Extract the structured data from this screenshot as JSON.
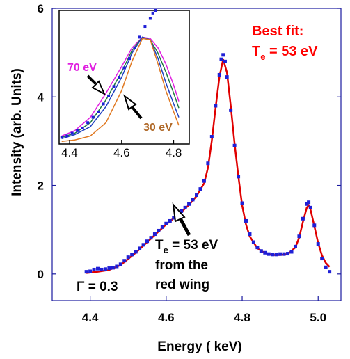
{
  "chart_data": [
    {
      "type": "scatter",
      "title": "",
      "xlabel": "Energy ( keV)",
      "ylabel": "Intensity (arb. Units)",
      "xlim": [
        4.3,
        5.06
      ],
      "ylim": [
        -0.6,
        6.0
      ],
      "x_ticks": [
        "4.4",
        "4.6",
        "4.8",
        "5.0"
      ],
      "y_ticks": [
        "0",
        "2",
        "4",
        "6"
      ],
      "series": [
        {
          "color": "#1f1fd6",
          "marker": "square",
          "points": [
            [
              4.39,
              0.05
            ],
            [
              4.4,
              0.06
            ],
            [
              4.41,
              0.1
            ],
            [
              4.42,
              0.12
            ],
            [
              4.43,
              0.1
            ],
            [
              4.44,
              0.11
            ],
            [
              4.45,
              0.13
            ],
            [
              4.46,
              0.14
            ],
            [
              4.47,
              0.17
            ],
            [
              4.48,
              0.22
            ],
            [
              4.49,
              0.3
            ],
            [
              4.5,
              0.38
            ],
            [
              4.51,
              0.44
            ],
            [
              4.52,
              0.5
            ],
            [
              4.53,
              0.58
            ],
            [
              4.54,
              0.66
            ],
            [
              4.55,
              0.74
            ],
            [
              4.56,
              0.82
            ],
            [
              4.57,
              0.9
            ],
            [
              4.58,
              0.98
            ],
            [
              4.59,
              1.06
            ],
            [
              4.6,
              1.14
            ],
            [
              4.61,
              1.2
            ],
            [
              4.62,
              1.27
            ],
            [
              4.63,
              1.34
            ],
            [
              4.64,
              1.42
            ],
            [
              4.65,
              1.5
            ],
            [
              4.66,
              1.58
            ],
            [
              4.67,
              1.68
            ],
            [
              4.68,
              1.78
            ],
            [
              4.69,
              1.92
            ],
            [
              4.7,
              2.1
            ],
            [
              4.71,
              2.5
            ],
            [
              4.72,
              3.1
            ],
            [
              4.73,
              3.8
            ],
            [
              4.74,
              4.5
            ],
            [
              4.745,
              4.85
            ],
            [
              4.75,
              4.95
            ],
            [
              4.755,
              4.8
            ],
            [
              4.76,
              4.45
            ],
            [
              4.77,
              3.7
            ],
            [
              4.78,
              2.9
            ],
            [
              4.79,
              2.2
            ],
            [
              4.8,
              1.6
            ],
            [
              4.81,
              1.2
            ],
            [
              4.82,
              0.9
            ],
            [
              4.83,
              0.72
            ],
            [
              4.84,
              0.6
            ],
            [
              4.85,
              0.52
            ],
            [
              4.86,
              0.48
            ],
            [
              4.87,
              0.45
            ],
            [
              4.88,
              0.44
            ],
            [
              4.89,
              0.44
            ],
            [
              4.9,
              0.45
            ],
            [
              4.91,
              0.45
            ],
            [
              4.92,
              0.46
            ],
            [
              4.93,
              0.5
            ],
            [
              4.94,
              0.62
            ],
            [
              4.95,
              0.85
            ],
            [
              4.96,
              1.25
            ],
            [
              4.97,
              1.58
            ],
            [
              4.975,
              1.62
            ],
            [
              4.98,
              1.5
            ],
            [
              4.99,
              1.1
            ],
            [
              5.0,
              0.68
            ],
            [
              5.01,
              0.35
            ],
            [
              5.02,
              0.15
            ],
            [
              5.03,
              0.05
            ]
          ]
        },
        {
          "name": "Best fit",
          "color": "#e00000",
          "marker": "line",
          "points": [
            [
              4.39,
              0.02
            ],
            [
              4.42,
              0.05
            ],
            [
              4.45,
              0.09
            ],
            [
              4.48,
              0.2
            ],
            [
              4.5,
              0.34
            ],
            [
              4.52,
              0.48
            ],
            [
              4.54,
              0.64
            ],
            [
              4.56,
              0.8
            ],
            [
              4.58,
              0.96
            ],
            [
              4.6,
              1.12
            ],
            [
              4.62,
              1.26
            ],
            [
              4.64,
              1.4
            ],
            [
              4.66,
              1.56
            ],
            [
              4.68,
              1.76
            ],
            [
              4.7,
              2.05
            ],
            [
              4.71,
              2.4
            ],
            [
              4.72,
              3.0
            ],
            [
              4.73,
              3.75
            ],
            [
              4.74,
              4.45
            ],
            [
              4.75,
              4.85
            ],
            [
              4.76,
              4.55
            ],
            [
              4.77,
              3.8
            ],
            [
              4.78,
              2.95
            ],
            [
              4.79,
              2.2
            ],
            [
              4.8,
              1.55
            ],
            [
              4.81,
              1.12
            ],
            [
              4.82,
              0.85
            ],
            [
              4.84,
              0.58
            ],
            [
              4.86,
              0.47
            ],
            [
              4.88,
              0.43
            ],
            [
              4.9,
              0.43
            ],
            [
              4.92,
              0.45
            ],
            [
              4.94,
              0.6
            ],
            [
              4.95,
              0.82
            ],
            [
              4.96,
              1.18
            ],
            [
              4.97,
              1.5
            ],
            [
              4.975,
              1.55
            ],
            [
              4.98,
              1.45
            ],
            [
              4.99,
              1.08
            ],
            [
              5.0,
              0.7
            ],
            [
              5.01,
              0.42
            ],
            [
              5.02,
              0.25
            ],
            [
              5.03,
              0.16
            ]
          ]
        }
      ],
      "annotations": {
        "best_fit_line1": "Best fit:",
        "best_fit_line2_T": "T",
        "best_fit_line2_sub": "e",
        "best_fit_line2_rest": " = 53 eV",
        "wing_T": "T",
        "wing_sub": "e",
        "wing_rest": " = 53 eV",
        "wing_line2": "from the",
        "wing_line3": "red wing",
        "gamma": "Γ = 0.3"
      }
    },
    {
      "type": "line",
      "title": "",
      "xlabel": "",
      "ylabel": "",
      "xlim": [
        4.36,
        4.86
      ],
      "ylim": [
        0.0,
        1.0
      ],
      "x_ticks": [
        "4.4",
        "4.6",
        "4.8"
      ],
      "series": [
        {
          "name": "70 eV",
          "color": "#e020e0",
          "points": [
            [
              4.37,
              0.06
            ],
            [
              4.42,
              0.1
            ],
            [
              4.48,
              0.2
            ],
            [
              4.54,
              0.38
            ],
            [
              4.6,
              0.58
            ],
            [
              4.64,
              0.72
            ],
            [
              4.68,
              0.8
            ],
            [
              4.71,
              0.79
            ],
            [
              4.74,
              0.72
            ],
            [
              4.77,
              0.6
            ],
            [
              4.8,
              0.44
            ],
            [
              4.82,
              0.32
            ]
          ]
        },
        {
          "color": "#207a40",
          "points": [
            [
              4.37,
              0.05
            ],
            [
              4.42,
              0.08
            ],
            [
              4.48,
              0.16
            ],
            [
              4.54,
              0.33
            ],
            [
              4.6,
              0.54
            ],
            [
              4.64,
              0.7
            ],
            [
              4.68,
              0.8
            ],
            [
              4.71,
              0.78
            ],
            [
              4.74,
              0.68
            ],
            [
              4.77,
              0.54
            ],
            [
              4.8,
              0.38
            ],
            [
              4.82,
              0.27
            ]
          ]
        },
        {
          "color": "#2040c0",
          "points": [
            [
              4.37,
              0.04
            ],
            [
              4.42,
              0.07
            ],
            [
              4.48,
              0.13
            ],
            [
              4.54,
              0.28
            ],
            [
              4.6,
              0.5
            ],
            [
              4.64,
              0.68
            ],
            [
              4.68,
              0.8
            ],
            [
              4.71,
              0.78
            ],
            [
              4.74,
              0.64
            ],
            [
              4.77,
              0.46
            ],
            [
              4.8,
              0.3
            ],
            [
              4.82,
              0.2
            ]
          ]
        },
        {
          "name": "30 eV",
          "color": "#e07820",
          "points": [
            [
              4.37,
              0.02
            ],
            [
              4.42,
              0.03
            ],
            [
              4.48,
              0.06
            ],
            [
              4.54,
              0.16
            ],
            [
              4.6,
              0.4
            ],
            [
              4.64,
              0.62
            ],
            [
              4.68,
              0.79
            ],
            [
              4.71,
              0.78
            ],
            [
              4.74,
              0.6
            ],
            [
              4.77,
              0.4
            ],
            [
              4.8,
              0.24
            ],
            [
              4.82,
              0.14
            ]
          ]
        },
        {
          "color": "#1f1fd6",
          "marker": "square",
          "points": [
            [
              4.37,
              0.05
            ],
            [
              4.39,
              0.06
            ],
            [
              4.41,
              0.08
            ],
            [
              4.43,
              0.1
            ],
            [
              4.45,
              0.12
            ],
            [
              4.47,
              0.16
            ],
            [
              4.49,
              0.2
            ],
            [
              4.51,
              0.24
            ],
            [
              4.53,
              0.3
            ],
            [
              4.55,
              0.36
            ],
            [
              4.57,
              0.43
            ],
            [
              4.59,
              0.5
            ],
            [
              4.61,
              0.57
            ],
            [
              4.63,
              0.64
            ],
            [
              4.65,
              0.72
            ],
            [
              4.67,
              0.8
            ],
            [
              4.69,
              0.88
            ],
            [
              4.71,
              0.94
            ],
            [
              4.72,
              0.98
            ],
            [
              4.73,
              1.0
            ]
          ]
        }
      ],
      "labels": {
        "high": "70 eV",
        "low": "30 eV"
      }
    }
  ]
}
